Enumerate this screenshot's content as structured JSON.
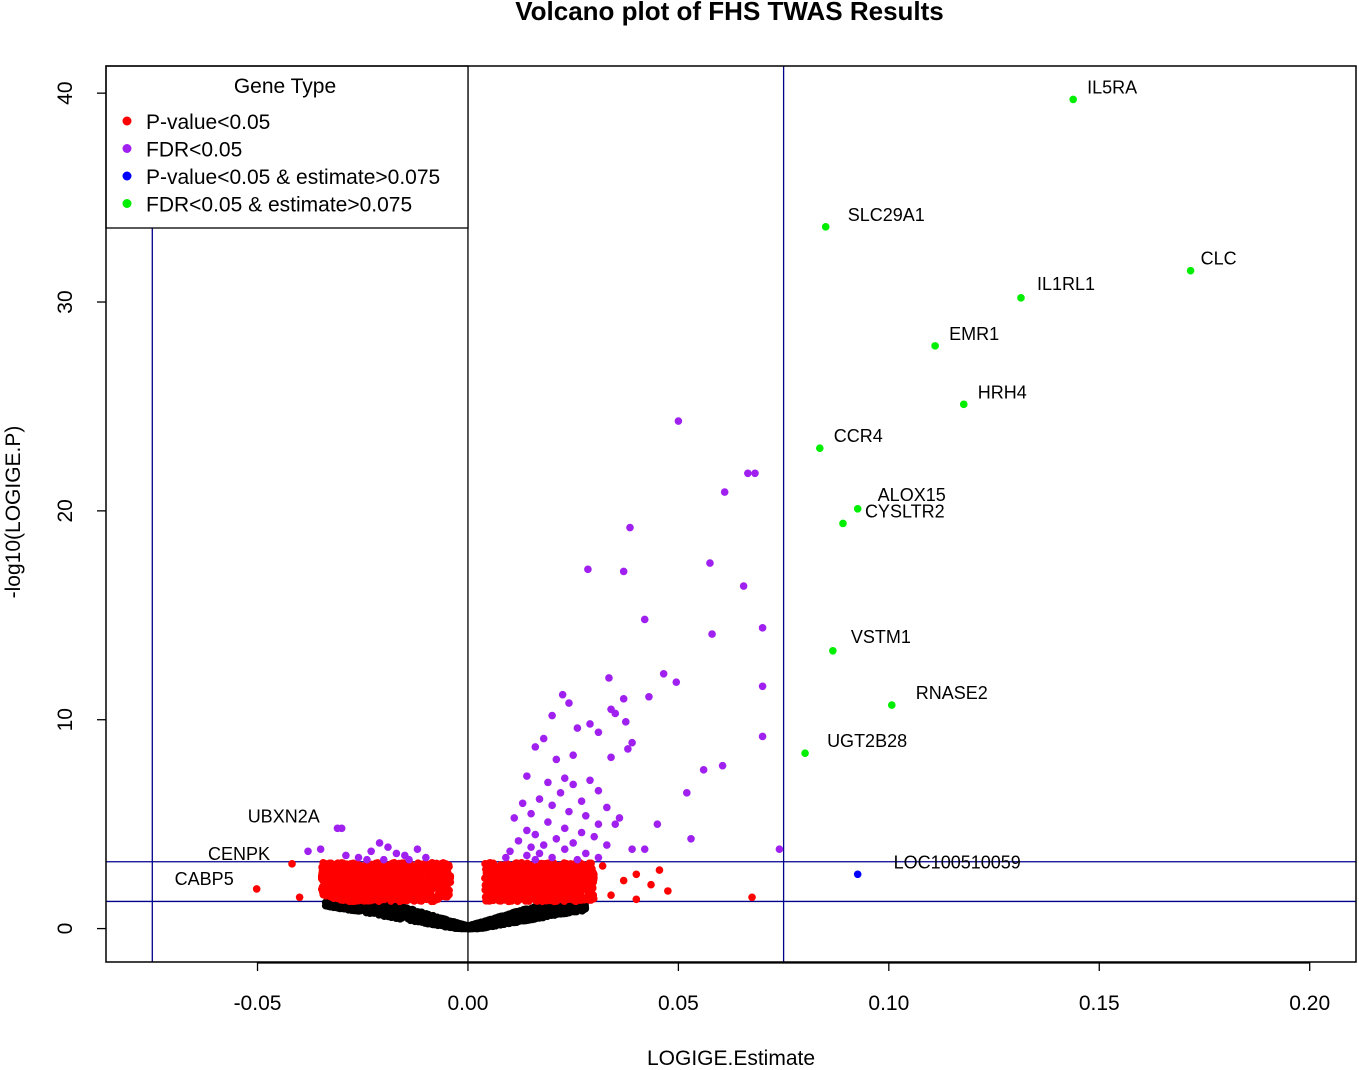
{
  "colors": {
    "not_significant": "#000000",
    "pvalue": "#ff0000",
    "fdr": "#a020f0",
    "pvalue_estimate": "#0000ff",
    "fdr_estimate": "#00ee00",
    "threshold_line": "#00008b"
  },
  "chart_data": {
    "type": "scatter",
    "title": "Volcano plot of FHS TWAS Results",
    "xlabel": "LOGIGE.Estimate",
    "ylabel": "-log10(LOGIGE.P)",
    "xlim": [
      -0.086,
      0.211
    ],
    "ylim": [
      -1.6,
      41.3
    ],
    "xticks": [
      -0.05,
      0.0,
      0.05,
      0.1,
      0.15,
      0.2
    ],
    "xtick_labels": [
      "-0.05",
      "0.00",
      "0.05",
      "0.10",
      "0.15",
      "0.20"
    ],
    "yticks": [
      0,
      10,
      20,
      30,
      40
    ],
    "ytick_labels": [
      "0",
      "10",
      "20",
      "30",
      "40"
    ],
    "grid": false,
    "legend": {
      "title": "Gene Type",
      "position": "top-left",
      "entries": [
        {
          "label": "P-value<0.05",
          "color": "#ff0000"
        },
        {
          "label": "FDR<0.05",
          "color": "#a020f0"
        },
        {
          "label": "P-value<0.05 & estimate>0.075",
          "color": "#0000ff"
        },
        {
          "label": "FDR<0.05 & estimate>0.075",
          "color": "#00ee00"
        }
      ]
    },
    "reference_lines": {
      "vertical": [
        -0.075,
        0.0,
        0.075
      ],
      "horizontal": [
        1.3,
        3.2
      ]
    },
    "series": [
      {
        "name": "FDR<0.05 & estimate>0.075",
        "color": "#00ee00",
        "points": [
          {
            "x": 0.1438,
            "y": 39.7,
            "label": "IL5RA"
          },
          {
            "x": 0.085,
            "y": 33.6,
            "label": "SLC29A1"
          },
          {
            "x": 0.1717,
            "y": 31.5,
            "label": "CLC"
          },
          {
            "x": 0.1314,
            "y": 30.2,
            "label": "IL1RL1"
          },
          {
            "x": 0.111,
            "y": 27.9,
            "label": "EMR1"
          },
          {
            "x": 0.1178,
            "y": 25.1,
            "label": "HRH4"
          },
          {
            "x": 0.0836,
            "y": 23.0,
            "label": "CCR4"
          },
          {
            "x": 0.0926,
            "y": 20.1,
            "label": "ALOX15"
          },
          {
            "x": 0.0891,
            "y": 19.4,
            "label": "CYSLTR2"
          },
          {
            "x": 0.0867,
            "y": 13.3,
            "label": "VSTM1"
          },
          {
            "x": 0.1007,
            "y": 10.7,
            "label": "RNASE2"
          },
          {
            "x": 0.0801,
            "y": 8.4,
            "label": "UGT2B28"
          }
        ]
      },
      {
        "name": "P-value<0.05 & estimate>0.075",
        "color": "#0000ff",
        "points": [
          {
            "x": 0.0926,
            "y": 2.6,
            "label": "LOC100510059"
          }
        ]
      },
      {
        "name": "FDR<0.05",
        "color": "#a020f0",
        "points": [
          {
            "x": 0.05,
            "y": 24.3
          },
          {
            "x": 0.0665,
            "y": 21.8
          },
          {
            "x": 0.0682,
            "y": 21.8
          },
          {
            "x": 0.061,
            "y": 20.9
          },
          {
            "x": 0.0385,
            "y": 19.2
          },
          {
            "x": 0.0285,
            "y": 17.2
          },
          {
            "x": 0.037,
            "y": 17.1
          },
          {
            "x": 0.0575,
            "y": 17.5
          },
          {
            "x": 0.0655,
            "y": 16.4
          },
          {
            "x": 0.042,
            "y": 14.8
          },
          {
            "x": 0.07,
            "y": 14.4
          },
          {
            "x": 0.058,
            "y": 14.1
          },
          {
            "x": 0.0465,
            "y": 12.2
          },
          {
            "x": 0.0335,
            "y": 12.0
          },
          {
            "x": 0.0495,
            "y": 11.8
          },
          {
            "x": 0.07,
            "y": 11.6
          },
          {
            "x": 0.0225,
            "y": 11.2
          },
          {
            "x": 0.043,
            "y": 11.1
          },
          {
            "x": 0.037,
            "y": 11.0
          },
          {
            "x": 0.024,
            "y": 10.8
          },
          {
            "x": 0.034,
            "y": 10.5
          },
          {
            "x": 0.02,
            "y": 10.2
          },
          {
            "x": 0.035,
            "y": 10.3
          },
          {
            "x": 0.029,
            "y": 9.8
          },
          {
            "x": 0.0375,
            "y": 9.9
          },
          {
            "x": 0.026,
            "y": 9.6
          },
          {
            "x": 0.031,
            "y": 9.4
          },
          {
            "x": 0.07,
            "y": 9.2
          },
          {
            "x": 0.018,
            "y": 9.1
          },
          {
            "x": 0.039,
            "y": 8.9
          },
          {
            "x": 0.016,
            "y": 8.7
          },
          {
            "x": 0.038,
            "y": 8.6
          },
          {
            "x": 0.025,
            "y": 8.3
          },
          {
            "x": 0.021,
            "y": 8.1
          },
          {
            "x": 0.034,
            "y": 8.2
          },
          {
            "x": 0.0605,
            "y": 7.8
          },
          {
            "x": 0.056,
            "y": 7.6
          },
          {
            "x": 0.014,
            "y": 7.3
          },
          {
            "x": 0.023,
            "y": 7.2
          },
          {
            "x": 0.029,
            "y": 7.1
          },
          {
            "x": 0.019,
            "y": 7.0
          },
          {
            "x": 0.025,
            "y": 6.9
          },
          {
            "x": 0.031,
            "y": 6.6
          },
          {
            "x": 0.022,
            "y": 6.5
          },
          {
            "x": 0.052,
            "y": 6.5
          },
          {
            "x": 0.017,
            "y": 6.2
          },
          {
            "x": 0.027,
            "y": 6.1
          },
          {
            "x": 0.013,
            "y": 6.0
          },
          {
            "x": 0.02,
            "y": 5.9
          },
          {
            "x": 0.033,
            "y": 5.8
          },
          {
            "x": 0.024,
            "y": 5.6
          },
          {
            "x": 0.015,
            "y": 5.5
          },
          {
            "x": 0.028,
            "y": 5.4
          },
          {
            "x": 0.036,
            "y": 5.3
          },
          {
            "x": 0.011,
            "y": 5.3
          },
          {
            "x": 0.019,
            "y": 5.1
          },
          {
            "x": 0.031,
            "y": 5.0
          },
          {
            "x": 0.035,
            "y": 5.0
          },
          {
            "x": 0.045,
            "y": 5.0
          },
          {
            "x": 0.023,
            "y": 4.8
          },
          {
            "x": 0.014,
            "y": 4.7
          },
          {
            "x": 0.027,
            "y": 4.6
          },
          {
            "x": 0.016,
            "y": 4.5
          },
          {
            "x": 0.03,
            "y": 4.4
          },
          {
            "x": 0.021,
            "y": 4.3
          },
          {
            "x": 0.053,
            "y": 4.3
          },
          {
            "x": 0.012,
            "y": 4.2
          },
          {
            "x": 0.025,
            "y": 4.1
          },
          {
            "x": 0.018,
            "y": 4.0
          },
          {
            "x": 0.033,
            "y": 4.0
          },
          {
            "x": 0.015,
            "y": 3.9
          },
          {
            "x": 0.023,
            "y": 3.8
          },
          {
            "x": 0.039,
            "y": 3.8
          },
          {
            "x": 0.042,
            "y": 3.8
          },
          {
            "x": 0.074,
            "y": 3.8
          },
          {
            "x": 0.01,
            "y": 3.7
          },
          {
            "x": 0.017,
            "y": 3.6
          },
          {
            "x": 0.028,
            "y": 3.6
          },
          {
            "x": 0.014,
            "y": 3.5
          },
          {
            "x": 0.02,
            "y": 3.4
          },
          {
            "x": 0.009,
            "y": 3.4
          },
          {
            "x": 0.026,
            "y": 3.3
          },
          {
            "x": 0.016,
            "y": 3.3
          },
          {
            "x": 0.031,
            "y": 3.4
          },
          {
            "x": -0.031,
            "y": 4.8
          },
          {
            "x": -0.035,
            "y": 3.8
          },
          {
            "x": -0.038,
            "y": 3.7
          },
          {
            "x": -0.029,
            "y": 3.5
          },
          {
            "x": -0.021,
            "y": 4.1
          },
          {
            "x": -0.019,
            "y": 3.9
          },
          {
            "x": -0.023,
            "y": 3.7
          },
          {
            "x": -0.017,
            "y": 3.6
          },
          {
            "x": -0.012,
            "y": 3.8
          },
          {
            "x": -0.015,
            "y": 3.5
          },
          {
            "x": -0.026,
            "y": 3.4
          },
          {
            "x": -0.01,
            "y": 3.4
          },
          {
            "x": -0.02,
            "y": 3.3
          },
          {
            "x": -0.024,
            "y": 3.3
          },
          {
            "x": -0.014,
            "y": 3.3
          }
        ]
      }
    ],
    "point_clouds": [
      {
        "name": "P-value<0.05",
        "color": "#ff0000",
        "label_points": [
          {
            "x": -0.0502,
            "y": 1.9,
            "label": "CABP5"
          },
          {
            "x": -0.0418,
            "y": 3.1,
            "label": "CENPK"
          },
          {
            "x": -0.03,
            "y": 4.8,
            "label": "UBXN2A"
          }
        ],
        "scattered_points": [
          {
            "x": -0.04,
            "y": 1.5
          },
          {
            "x": -0.034,
            "y": 2.6
          },
          {
            "x": 0.037,
            "y": 2.3
          },
          {
            "x": 0.04,
            "y": 2.6
          },
          {
            "x": 0.034,
            "y": 1.6
          },
          {
            "x": 0.0435,
            "y": 2.1
          },
          {
            "x": 0.0455,
            "y": 2.8
          },
          {
            "x": 0.0475,
            "y": 1.8
          },
          {
            "x": 0.04,
            "y": 1.4
          },
          {
            "x": 0.0675,
            "y": 1.5
          },
          {
            "x": 0.032,
            "y": 3.0
          },
          {
            "x": 0.029,
            "y": 2.2
          },
          {
            "x": 0.027,
            "y": 2.9
          }
        ],
        "cloud_extent": {
          "x": [
            -0.035,
            0.03
          ],
          "y": [
            1.3,
            3.2
          ]
        }
      },
      {
        "name": "not significant",
        "color": "#000000",
        "cloud_extent": {
          "x": [
            -0.034,
            0.028
          ],
          "y": [
            0,
            1.3
          ]
        }
      }
    ]
  }
}
